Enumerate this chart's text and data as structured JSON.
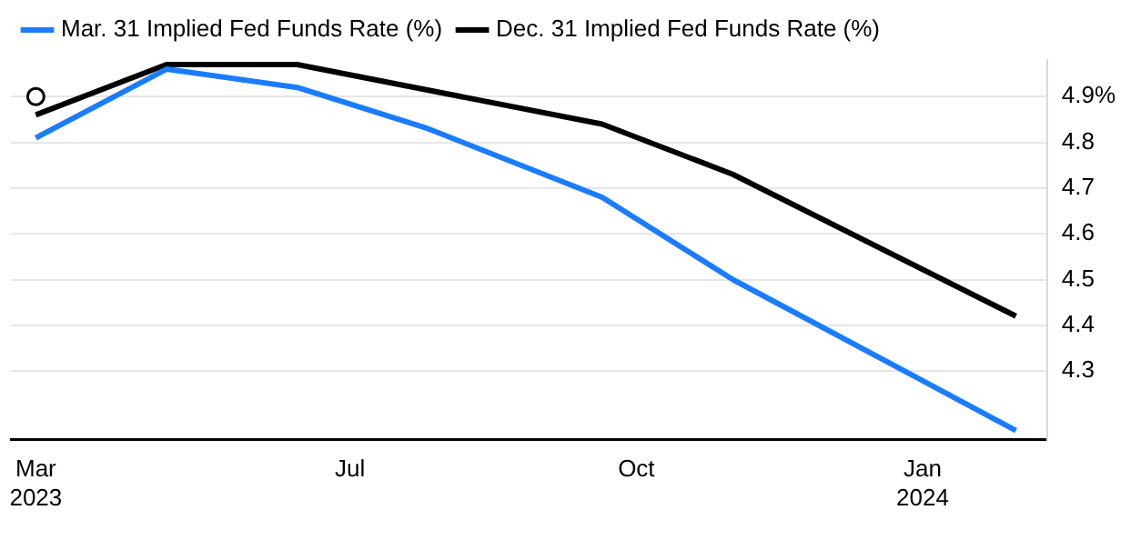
{
  "chart_data": {
    "type": "line",
    "series": [
      {
        "name": "Mar. 31 Implied Fed Funds Rate (%)",
        "color": "#1a7cff",
        "x": [
          "2023-03-22",
          "2023-05-03",
          "2023-06-14",
          "2023-07-26",
          "2023-09-20",
          "2023-11-01",
          "2024-01-31"
        ],
        "values": [
          4.81,
          4.96,
          4.92,
          4.83,
          4.68,
          4.5,
          4.17
        ],
        "marker": "none"
      },
      {
        "name": "Dec. 31 Implied Fed Funds Rate (%)",
        "color": "#000000",
        "x": [
          "2023-03-22",
          "2023-05-03",
          "2023-06-14",
          "2023-09-20",
          "2023-11-01",
          "2024-01-31"
        ],
        "values": [
          4.86,
          4.97,
          4.97,
          4.84,
          4.73,
          4.42
        ],
        "marker": "none"
      },
      {
        "type": "scatter",
        "color": "#000000",
        "x": [
          "2023-03-22"
        ],
        "values": [
          4.9
        ],
        "marker": "circle"
      }
    ],
    "xlim": [
      "2023-03-14",
      "2024-02-10"
    ],
    "xticks": [
      {
        "value": "2023-03-22",
        "label": "Mar 2023"
      },
      {
        "value": "2023-07-01",
        "label": "Jul"
      },
      {
        "value": "2023-10-01",
        "label": "Oct"
      },
      {
        "value": "2024-01-01",
        "label": "Jan 2024"
      }
    ],
    "ylim": [
      4.15,
      4.98
    ],
    "yticks": [
      {
        "value": 4.3,
        "label": "4.3"
      },
      {
        "value": 4.4,
        "label": "4.4"
      },
      {
        "value": 4.5,
        "label": "4.5"
      },
      {
        "value": 4.6,
        "label": "4.6"
      },
      {
        "value": 4.7,
        "label": "4.7"
      },
      {
        "value": 4.8,
        "label": "4.8"
      },
      {
        "value": 4.9,
        "label": "4.9%"
      }
    ],
    "grid": "y",
    "legend": "top left",
    "line_style": "solid"
  }
}
